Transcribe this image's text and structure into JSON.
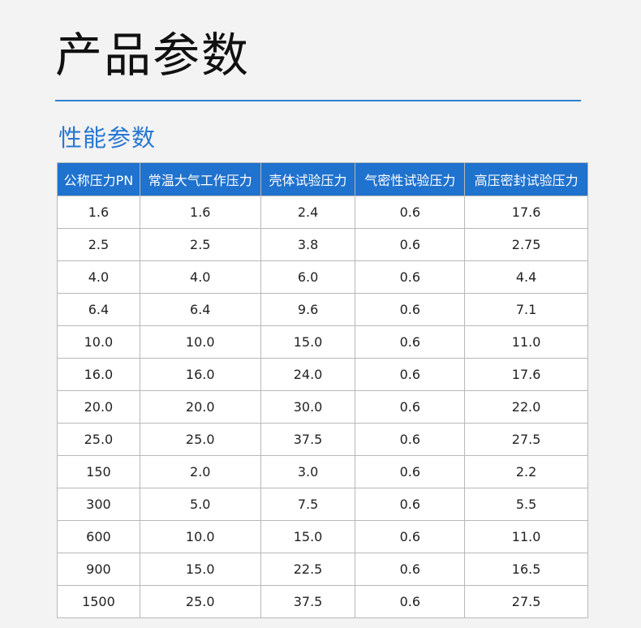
{
  "title": "产品参数",
  "section": "性能参数",
  "colors": {
    "accent": "#1f72ce",
    "background": "#f3f3f3"
  },
  "table": {
    "headers": [
      "公称压力PN",
      "常温大气工作压力",
      "壳体试验压力",
      "气密性试验压力",
      "高压密封试验压力"
    ],
    "rows": [
      [
        "1.6",
        "1.6",
        "2.4",
        "0.6",
        "17.6"
      ],
      [
        "2.5",
        "2.5",
        "3.8",
        "0.6",
        "2.75"
      ],
      [
        "4.0",
        "4.0",
        "6.0",
        "0.6",
        "4.4"
      ],
      [
        "6.4",
        "6.4",
        "9.6",
        "0.6",
        "7.1"
      ],
      [
        "10.0",
        "10.0",
        "15.0",
        "0.6",
        "11.0"
      ],
      [
        "16.0",
        "16.0",
        "24.0",
        "0.6",
        "17.6"
      ],
      [
        "20.0",
        "20.0",
        "30.0",
        "0.6",
        "22.0"
      ],
      [
        "25.0",
        "25.0",
        "37.5",
        "0.6",
        "27.5"
      ],
      [
        "150",
        "2.0",
        "3.0",
        "0.6",
        "2.2"
      ],
      [
        "300",
        "5.0",
        "7.5",
        "0.6",
        "5.5"
      ],
      [
        "600",
        "10.0",
        "15.0",
        "0.6",
        "11.0"
      ],
      [
        "900",
        "15.0",
        "22.5",
        "0.6",
        "16.5"
      ],
      [
        "1500",
        "25.0",
        "37.5",
        "0.6",
        "27.5"
      ]
    ]
  }
}
